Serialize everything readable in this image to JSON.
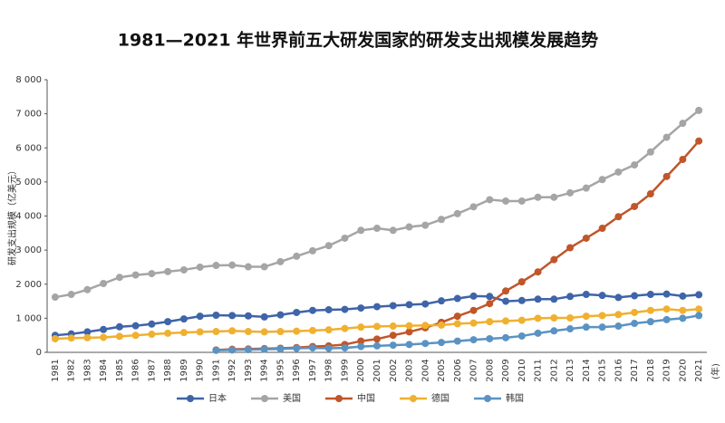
{
  "chart_data": {
    "type": "line",
    "title": "1981—2021 年世界前五大研发国家的研发支出规模发展趋势",
    "y_label": "研发支出规模（亿美元）",
    "x_label": "(年)",
    "categories": [
      "1981",
      "1982",
      "1983",
      "1984",
      "1985",
      "1986",
      "1987",
      "1988",
      "1989",
      "1990",
      "1991",
      "1992",
      "1993",
      "1994",
      "1995",
      "1996",
      "1997",
      "1998",
      "1999",
      "2000",
      "2001",
      "2002",
      "2003",
      "2004",
      "2005",
      "2006",
      "2007",
      "2008",
      "2009",
      "2010",
      "2011",
      "2012",
      "2013",
      "2014",
      "2015",
      "2016",
      "2017",
      "2018",
      "2019",
      "2020",
      "2021"
    ],
    "ylim": [
      0,
      8000
    ],
    "yticks": [
      0,
      {
        "value": 1000,
        "label": "1 000"
      },
      {
        "value": 2000,
        "label": "2 000"
      },
      {
        "value": 3000,
        "label": "3 000"
      },
      {
        "value": 4000,
        "label": "4 000"
      },
      {
        "value": 5000,
        "label": "5 000"
      },
      {
        "value": 6000,
        "label": "6 000"
      },
      {
        "value": 7000,
        "label": "7 000"
      },
      {
        "value": 8000,
        "label": "8 000"
      }
    ],
    "legend": "bottom",
    "series": [
      {
        "name": "日本",
        "color": "#3f64a8",
        "values": [
          500,
          540,
          600,
          670,
          750,
          780,
          830,
          900,
          980,
          1060,
          1090,
          1080,
          1070,
          1040,
          1100,
          1170,
          1230,
          1250,
          1260,
          1300,
          1340,
          1370,
          1400,
          1420,
          1510,
          1580,
          1650,
          1640,
          1500,
          1520,
          1560,
          1560,
          1640,
          1700,
          1670,
          1610,
          1660,
          1700,
          1710,
          1650,
          1690
        ]
      },
      {
        "name": "美国",
        "color": "#a5a5a5",
        "values": [
          1620,
          1700,
          1840,
          2020,
          2200,
          2270,
          2310,
          2370,
          2420,
          2500,
          2550,
          2560,
          2510,
          2510,
          2660,
          2820,
          2980,
          3130,
          3350,
          3580,
          3640,
          3580,
          3680,
          3730,
          3900,
          4070,
          4270,
          4480,
          4440,
          4440,
          4550,
          4550,
          4680,
          4820,
          5070,
          5290,
          5500,
          5880,
          6310,
          6720,
          7100
        ]
      },
      {
        "name": "中国",
        "color": "#c0562a",
        "values": [
          null,
          null,
          null,
          null,
          null,
          null,
          null,
          null,
          null,
          null,
          70,
          90,
          100,
          110,
          120,
          140,
          170,
          190,
          230,
          330,
          390,
          500,
          600,
          720,
          880,
          1060,
          1230,
          1430,
          1800,
          2070,
          2360,
          2720,
          3070,
          3350,
          3640,
          3980,
          4280,
          4650,
          5160,
          5660,
          6200
        ]
      },
      {
        "name": "德国",
        "color": "#f0b030",
        "values": [
          400,
          420,
          430,
          440,
          470,
          500,
          530,
          560,
          580,
          600,
          610,
          630,
          610,
          600,
          610,
          620,
          640,
          660,
          700,
          740,
          760,
          770,
          780,
          790,
          800,
          840,
          860,
          900,
          920,
          940,
          1000,
          1010,
          1010,
          1060,
          1080,
          1110,
          1170,
          1230,
          1270,
          1230,
          1270
        ]
      },
      {
        "name": "韩国",
        "color": "#5a93c3",
        "values": [
          null,
          null,
          null,
          null,
          null,
          null,
          null,
          null,
          null,
          null,
          60,
          70,
          80,
          90,
          100,
          120,
          130,
          120,
          130,
          170,
          190,
          210,
          230,
          260,
          290,
          330,
          370,
          400,
          430,
          480,
          560,
          630,
          690,
          740,
          740,
          770,
          850,
          900,
          960,
          1000,
          1080
        ]
      }
    ]
  }
}
